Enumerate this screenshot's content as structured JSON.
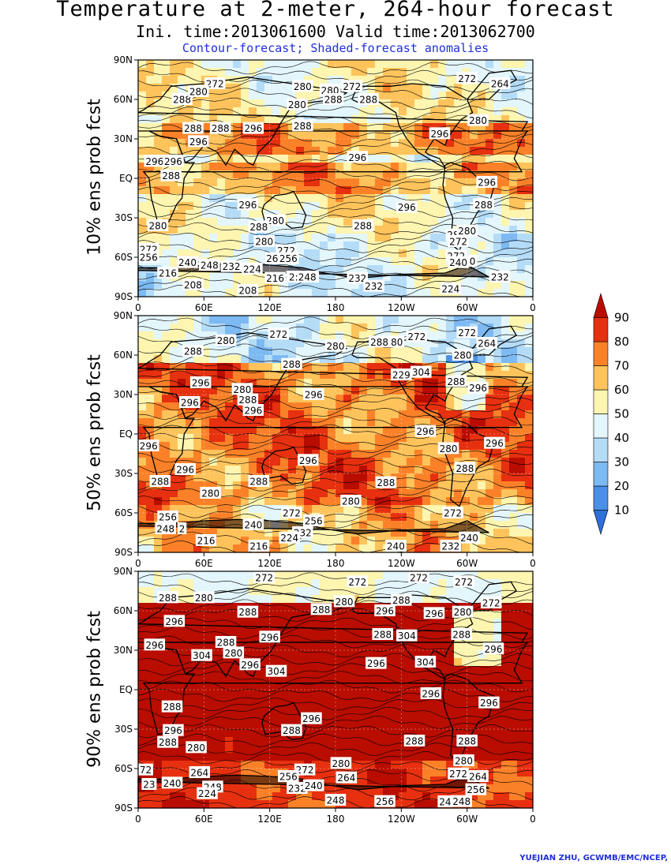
{
  "header": {
    "title": "Temperature at 2-meter, 264-hour forecast",
    "subtitle": "Ini. time:2013061600    Valid time:2013062700",
    "description": "Contour-forecast; Shaded-forecast anomalies"
  },
  "credit": "YUEJIAN ZHU, GCWMB/EMC/NCEP,",
  "chart_data": [
    {
      "type": "heatmap",
      "ylabel": "10% ens prob fcst",
      "xticks": [
        "0",
        "60E",
        "120E",
        "180",
        "120W",
        "60W",
        "0"
      ],
      "yticks": [
        "90N",
        "60N",
        "30N",
        "EQ",
        "30S",
        "60S",
        "90S"
      ],
      "xlim": [
        0,
        360
      ],
      "ylim": [
        -90,
        90
      ],
      "contour_labels": [
        {
          "text": "272",
          "lon": 70,
          "lat": 72
        },
        {
          "text": "280",
          "lon": 150,
          "lat": 70
        },
        {
          "text": "280",
          "lon": 175,
          "lat": 67
        },
        {
          "text": "272",
          "lon": 195,
          "lat": 70
        },
        {
          "text": "288",
          "lon": 178,
          "lat": 60
        },
        {
          "text": "288",
          "lon": 210,
          "lat": 60
        },
        {
          "text": "272",
          "lon": 300,
          "lat": 76
        },
        {
          "text": "264",
          "lon": 330,
          "lat": 72
        },
        {
          "text": "288",
          "lon": 40,
          "lat": 60
        },
        {
          "text": "280",
          "lon": 55,
          "lat": 66
        },
        {
          "text": "280",
          "lon": 145,
          "lat": 56
        },
        {
          "text": "288",
          "lon": 150,
          "lat": 40
        },
        {
          "text": "280",
          "lon": 310,
          "lat": 44
        },
        {
          "text": "288",
          "lon": 50,
          "lat": 38
        },
        {
          "text": "288",
          "lon": 75,
          "lat": 38
        },
        {
          "text": "296",
          "lon": 105,
          "lat": 38
        },
        {
          "text": "296",
          "lon": 55,
          "lat": 28
        },
        {
          "text": "296",
          "lon": 275,
          "lat": 34
        },
        {
          "text": "296",
          "lon": 200,
          "lat": 16
        },
        {
          "text": "296",
          "lon": 15,
          "lat": 13
        },
        {
          "text": "296",
          "lon": 32,
          "lat": 13
        },
        {
          "text": "288",
          "lon": 30,
          "lat": 2
        },
        {
          "text": "296",
          "lon": 318,
          "lat": -3
        },
        {
          "text": "296",
          "lon": 100,
          "lat": -20
        },
        {
          "text": "296",
          "lon": 245,
          "lat": -22
        },
        {
          "text": "288",
          "lon": 315,
          "lat": -20
        },
        {
          "text": "280",
          "lon": 125,
          "lat": -32
        },
        {
          "text": "280",
          "lon": 18,
          "lat": -36
        },
        {
          "text": "288",
          "lon": 110,
          "lat": -37
        },
        {
          "text": "288",
          "lon": 205,
          "lat": -36
        },
        {
          "text": "280",
          "lon": 290,
          "lat": -43
        },
        {
          "text": "272",
          "lon": 292,
          "lat": -48
        },
        {
          "text": "280",
          "lon": 300,
          "lat": -40
        },
        {
          "text": "280",
          "lon": 115,
          "lat": -48
        },
        {
          "text": "272",
          "lon": 135,
          "lat": -55
        },
        {
          "text": "272",
          "lon": 2,
          "lat": -54
        },
        {
          "text": "256",
          "lon": 5,
          "lat": -60
        },
        {
          "text": "240",
          "lon": 45,
          "lat": -64
        },
        {
          "text": "248",
          "lon": 65,
          "lat": -66
        },
        {
          "text": "232",
          "lon": 85,
          "lat": -67
        },
        {
          "text": "224",
          "lon": 104,
          "lat": -69
        },
        {
          "text": "264",
          "lon": 125,
          "lat": -61
        },
        {
          "text": "256",
          "lon": 137,
          "lat": -61
        },
        {
          "text": "272",
          "lon": 290,
          "lat": -59
        },
        {
          "text": "240",
          "lon": 292,
          "lat": -64
        },
        {
          "text": "0",
          "lon": 305,
          "lat": -63
        },
        {
          "text": "216",
          "lon": 27,
          "lat": -72
        },
        {
          "text": "208",
          "lon": 50,
          "lat": -81
        },
        {
          "text": "216",
          "lon": 125,
          "lat": -76
        },
        {
          "text": "2:248",
          "lon": 150,
          "lat": -75
        },
        {
          "text": "232",
          "lon": 200,
          "lat": -76
        },
        {
          "text": "232",
          "lon": 215,
          "lat": -82
        },
        {
          "text": "224",
          "lon": 285,
          "lat": -84
        },
        {
          "text": "232",
          "lon": 330,
          "lat": -75
        },
        {
          "text": "208",
          "lon": 100,
          "lat": -89
        }
      ]
    },
    {
      "type": "heatmap",
      "ylabel": "50% ens prob fcst",
      "xticks": [
        "0",
        "60E",
        "120E",
        "180",
        "120W",
        "60W",
        "0"
      ],
      "yticks": [
        "90N",
        "60N",
        "30N",
        "EQ",
        "30S",
        "60S",
        "90S"
      ],
      "xlim": [
        0,
        360
      ],
      "ylim": [
        -90,
        90
      ],
      "contour_labels": [
        {
          "text": "280",
          "lon": 80,
          "lat": 71
        },
        {
          "text": "272",
          "lon": 128,
          "lat": 76
        },
        {
          "text": "280",
          "lon": 180,
          "lat": 67
        },
        {
          "text": "288",
          "lon": 220,
          "lat": 70
        },
        {
          "text": "80",
          "lon": 236,
          "lat": 70
        },
        {
          "text": "272",
          "lon": 254,
          "lat": 74
        },
        {
          "text": "272",
          "lon": 300,
          "lat": 77
        },
        {
          "text": "264",
          "lon": 318,
          "lat": 69
        },
        {
          "text": "288",
          "lon": 50,
          "lat": 63
        },
        {
          "text": "288",
          "lon": 140,
          "lat": 53
        },
        {
          "text": "280",
          "lon": 296,
          "lat": 60
        },
        {
          "text": "229",
          "lon": 240,
          "lat": 45
        },
        {
          "text": "304",
          "lon": 258,
          "lat": 47
        },
        {
          "text": "288",
          "lon": 290,
          "lat": 40
        },
        {
          "text": "296",
          "lon": 310,
          "lat": 35
        },
        {
          "text": "296",
          "lon": 57,
          "lat": 39
        },
        {
          "text": "280",
          "lon": 95,
          "lat": 34
        },
        {
          "text": "288",
          "lon": 100,
          "lat": 26
        },
        {
          "text": "296",
          "lon": 105,
          "lat": 18
        },
        {
          "text": "296",
          "lon": 160,
          "lat": 30
        },
        {
          "text": "296",
          "lon": 47,
          "lat": 24
        },
        {
          "text": "296",
          "lon": 262,
          "lat": 2
        },
        {
          "text": "280",
          "lon": 283,
          "lat": -11
        },
        {
          "text": "296",
          "lon": 325,
          "lat": -7
        },
        {
          "text": "296",
          "lon": 9,
          "lat": -9
        },
        {
          "text": "296",
          "lon": 155,
          "lat": -20
        },
        {
          "text": "296",
          "lon": 43,
          "lat": -27
        },
        {
          "text": "288",
          "lon": 298,
          "lat": -26
        },
        {
          "text": "288",
          "lon": 20,
          "lat": -36
        },
        {
          "text": "288",
          "lon": 110,
          "lat": -36
        },
        {
          "text": "288",
          "lon": 226,
          "lat": -37
        },
        {
          "text": "280",
          "lon": 66,
          "lat": -45
        },
        {
          "text": "280",
          "lon": 194,
          "lat": -51
        },
        {
          "text": "256",
          "lon": 27,
          "lat": -63
        },
        {
          "text": "272",
          "lon": 140,
          "lat": -60
        },
        {
          "text": "256",
          "lon": 160,
          "lat": -66
        },
        {
          "text": "272",
          "lon": 287,
          "lat": -60
        },
        {
          "text": "248",
          "lon": 25,
          "lat": -72
        },
        {
          "text": "2",
          "lon": 40,
          "lat": -72
        },
        {
          "text": "240",
          "lon": 105,
          "lat": -69
        },
        {
          "text": "232",
          "lon": 150,
          "lat": -75
        },
        {
          "text": "224",
          "lon": 138,
          "lat": -79
        },
        {
          "text": "240",
          "lon": 302,
          "lat": -79
        },
        {
          "text": "216",
          "lon": 62,
          "lat": -81
        },
        {
          "text": "216",
          "lon": 110,
          "lat": -87
        },
        {
          "text": "240",
          "lon": 235,
          "lat": -87
        },
        {
          "text": "232",
          "lon": 285,
          "lat": -88
        }
      ]
    },
    {
      "type": "heatmap",
      "ylabel": "90% ens prob fcst",
      "xticks": [
        "0",
        "60E",
        "120E",
        "180",
        "120W",
        "60W",
        "0"
      ],
      "yticks": [
        "90N",
        "60N",
        "30N",
        "EQ",
        "30S",
        "60S",
        "90S"
      ],
      "xlim": [
        0,
        360
      ],
      "ylim": [
        -90,
        90
      ],
      "contour_labels": [
        {
          "text": "272",
          "lon": 115,
          "lat": 86
        },
        {
          "text": "272",
          "lon": 200,
          "lat": 82
        },
        {
          "text": "272",
          "lon": 256,
          "lat": 88
        },
        {
          "text": "272",
          "lon": 297,
          "lat": 82
        },
        {
          "text": "288",
          "lon": 27,
          "lat": 70
        },
        {
          "text": "280",
          "lon": 60,
          "lat": 70
        },
        {
          "text": "272",
          "lon": 322,
          "lat": 66
        },
        {
          "text": "280",
          "lon": 188,
          "lat": 67
        },
        {
          "text": "288",
          "lon": 240,
          "lat": 68
        },
        {
          "text": "288",
          "lon": 100,
          "lat": 59
        },
        {
          "text": "288",
          "lon": 167,
          "lat": 61
        },
        {
          "text": "296",
          "lon": 225,
          "lat": 60
        },
        {
          "text": "296",
          "lon": 270,
          "lat": 58
        },
        {
          "text": "280",
          "lon": 296,
          "lat": 59
        },
        {
          "text": "296",
          "lon": 33,
          "lat": 52
        },
        {
          "text": "288",
          "lon": 80,
          "lat": 36
        },
        {
          "text": "296",
          "lon": 120,
          "lat": 40
        },
        {
          "text": "288",
          "lon": 223,
          "lat": 42
        },
        {
          "text": "304",
          "lon": 245,
          "lat": 41
        },
        {
          "text": "288",
          "lon": 295,
          "lat": 42
        },
        {
          "text": "296",
          "lon": 324,
          "lat": 31
        },
        {
          "text": "296",
          "lon": 15,
          "lat": 34
        },
        {
          "text": "304",
          "lon": 58,
          "lat": 26
        },
        {
          "text": "280",
          "lon": 87,
          "lat": 28
        },
        {
          "text": "296",
          "lon": 102,
          "lat": 19
        },
        {
          "text": "304",
          "lon": 126,
          "lat": 14
        },
        {
          "text": "296",
          "lon": 217,
          "lat": 20
        },
        {
          "text": "304",
          "lon": 262,
          "lat": 21
        },
        {
          "text": "296",
          "lon": 267,
          "lat": -3
        },
        {
          "text": "296",
          "lon": 320,
          "lat": -10
        },
        {
          "text": "288",
          "lon": 31,
          "lat": -13
        },
        {
          "text": "296",
          "lon": 158,
          "lat": -22
        },
        {
          "text": "296",
          "lon": 32,
          "lat": -31
        },
        {
          "text": "288",
          "lon": 140,
          "lat": -31
        },
        {
          "text": "288",
          "lon": 27,
          "lat": -40
        },
        {
          "text": "280",
          "lon": 53,
          "lat": -44
        },
        {
          "text": "288",
          "lon": 252,
          "lat": -39
        },
        {
          "text": "288",
          "lon": 300,
          "lat": -39
        },
        {
          "text": "280",
          "lon": 297,
          "lat": -54
        },
        {
          "text": "280",
          "lon": 185,
          "lat": -56
        },
        {
          "text": "272",
          "lon": 152,
          "lat": -61
        },
        {
          "text": "256",
          "lon": 137,
          "lat": -66
        },
        {
          "text": "272",
          "lon": 292,
          "lat": -64
        },
        {
          "text": "264",
          "lon": 310,
          "lat": -66
        },
        {
          "text": "264",
          "lon": 190,
          "lat": -67
        },
        {
          "text": "264",
          "lon": 56,
          "lat": -63
        },
        {
          "text": "72",
          "lon": 4,
          "lat": -61
        },
        {
          "text": "23",
          "lon": 10,
          "lat": -72
        },
        {
          "text": "240",
          "lon": 31,
          "lat": -71
        },
        {
          "text": "248",
          "lon": 68,
          "lat": -74
        },
        {
          "text": "224",
          "lon": 63,
          "lat": -79
        },
        {
          "text": "232",
          "lon": 145,
          "lat": -75
        },
        {
          "text": "240",
          "lon": 160,
          "lat": -73
        },
        {
          "text": "256",
          "lon": 308,
          "lat": -76
        },
        {
          "text": "248",
          "lon": 180,
          "lat": -84
        },
        {
          "text": "256",
          "lon": 225,
          "lat": -85
        },
        {
          "text": "248",
          "lon": 295,
          "lat": -85
        },
        {
          "text": "24",
          "lon": 280,
          "lat": -86
        }
      ]
    }
  ],
  "colorbar": {
    "ticks": [
      "10",
      "20",
      "30",
      "40",
      "50",
      "60",
      "70",
      "80",
      "90"
    ],
    "colors": [
      "#2e6fd9",
      "#4a8fe8",
      "#7db9f2",
      "#b4dcf7",
      "#e3f6fb",
      "#fdf5b0",
      "#fec35b",
      "#fb8128",
      "#e6300f",
      "#b80d00"
    ]
  },
  "colors": {
    "land_black": "#000000",
    "ocean_mid": "#7db9f2"
  }
}
